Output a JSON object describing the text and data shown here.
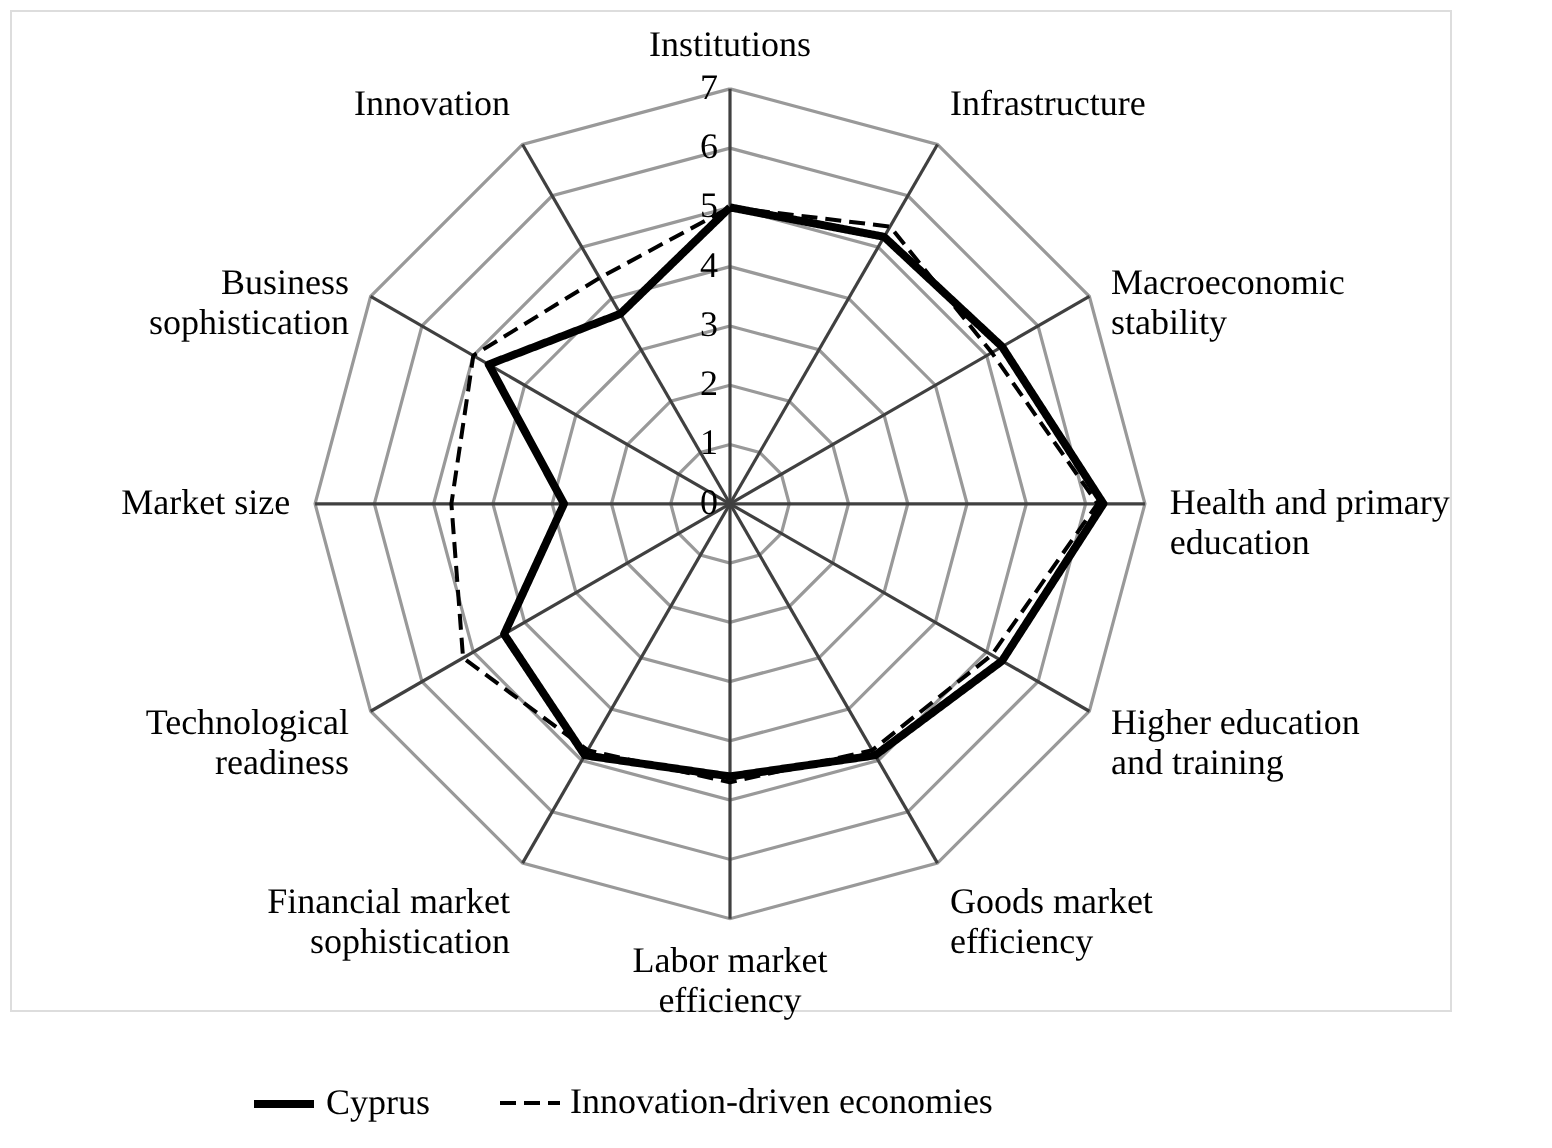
{
  "chart_data": {
    "type": "radar",
    "categories": [
      "Institutions",
      "Infrastructure",
      "Macroeconomic\nstability",
      "Health and primary\neducation",
      "Higher education\nand training",
      "Goods market\nefficiency",
      "Labor market\nefficiency",
      "Financial market\nsophistication",
      "Technological\nreadiness",
      "Market size",
      "Business\nsophistication",
      "Innovation"
    ],
    "series": [
      {
        "name": "Cyprus",
        "color": "#000000",
        "line_style": "solid",
        "values": [
          5.0,
          5.2,
          5.3,
          6.3,
          5.3,
          4.9,
          4.6,
          4.9,
          4.4,
          2.8,
          4.7,
          3.7
        ]
      },
      {
        "name": "Innovation-driven economies",
        "color": "#000000",
        "line_style": "dashed",
        "values": [
          5.0,
          5.4,
          5.1,
          6.2,
          5.1,
          4.8,
          4.7,
          4.8,
          5.2,
          4.7,
          5.0,
          4.4
        ]
      }
    ],
    "ylim": [
      0,
      7
    ],
    "yticks": [
      0,
      1,
      2,
      3,
      4,
      5,
      6,
      7
    ],
    "grid": true,
    "legend": "bottom",
    "marker": "none"
  }
}
